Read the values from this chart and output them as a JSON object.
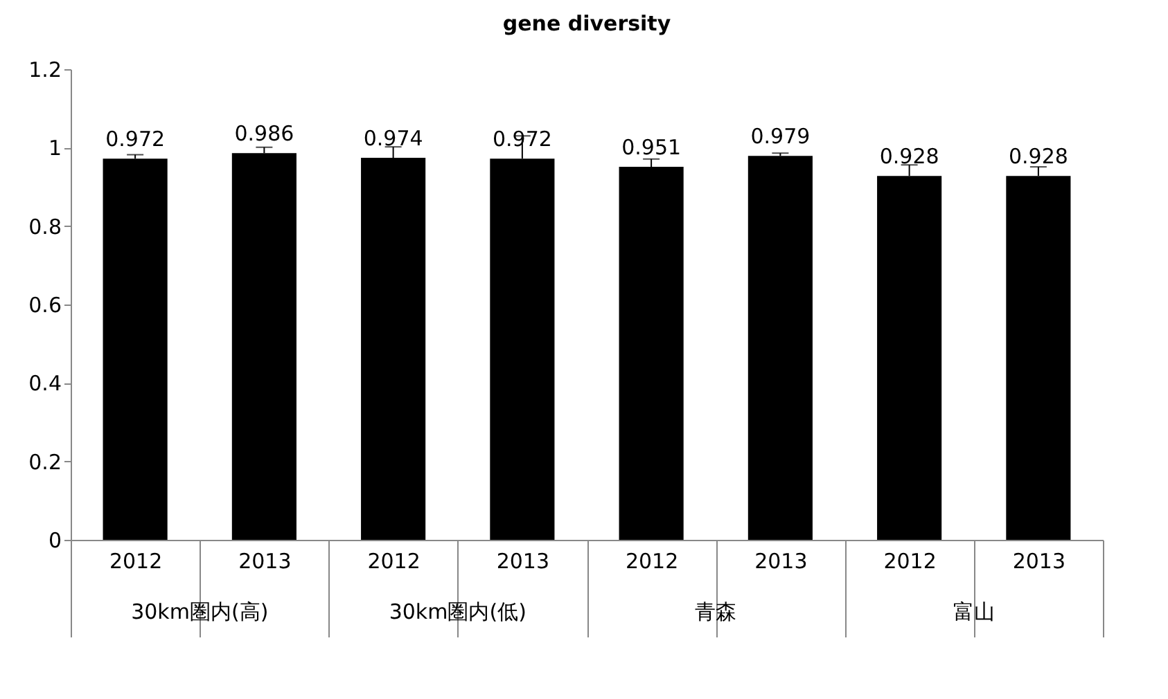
{
  "chart_data": {
    "type": "bar",
    "title": "gene diversity",
    "categories": [
      "2012",
      "2013",
      "2012",
      "2013",
      "2012",
      "2013",
      "2012",
      "2013"
    ],
    "values": [
      0.972,
      0.986,
      0.974,
      0.972,
      0.951,
      0.979,
      0.928,
      0.928
    ],
    "errors": [
      [
        0.972,
        0.982
      ],
      [
        0.986,
        1.001
      ],
      [
        0.974,
        1.002
      ],
      [
        0.972,
        1.03
      ],
      [
        0.951,
        0.971
      ],
      [
        0.979,
        0.986
      ],
      [
        0.928,
        0.956
      ],
      [
        0.928,
        0.951
      ]
    ],
    "color": "#000000",
    "data_labels": true,
    "annotations": [
      "30km圏内(高)",
      "30km圏内(低)",
      "青森",
      "富山"
    ],
    "ylim": [
      0,
      1.2
    ],
    "yticks": [
      0,
      0.2,
      0.4,
      0.6,
      0.8,
      1,
      1.2
    ],
    "grid": false
  }
}
